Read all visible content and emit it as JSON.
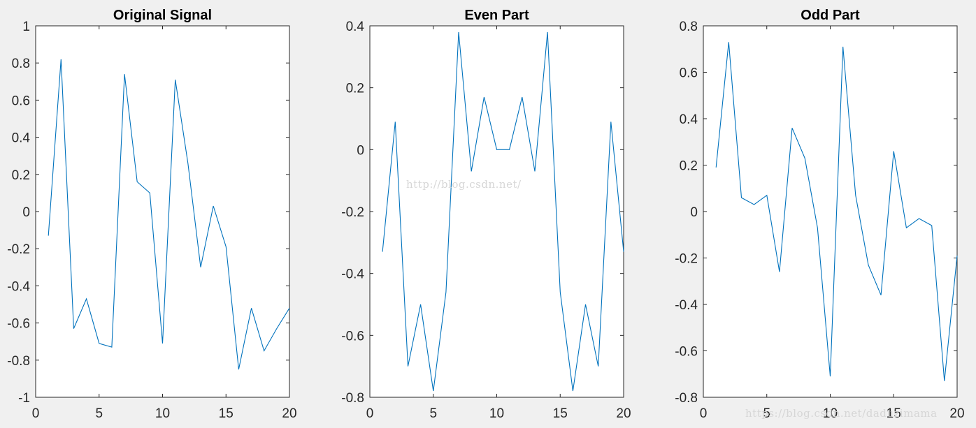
{
  "chart_data": [
    {
      "type": "line",
      "title": "Original Signal",
      "xlabel": "",
      "ylabel": "",
      "xlim": [
        0,
        20
      ],
      "ylim": [
        -1,
        1
      ],
      "xticks": [
        "0",
        "5",
        "10",
        "15",
        "20"
      ],
      "yticks": [
        "-1",
        "-0.8",
        "-0.6",
        "-0.4",
        "-0.2",
        "0",
        "0.2",
        "0.4",
        "0.6",
        "0.8",
        "1"
      ],
      "grid": false,
      "line_color": "#0072bd",
      "x": [
        1,
        2,
        3,
        4,
        5,
        6,
        7,
        8,
        9,
        10,
        11,
        12,
        13,
        14,
        15,
        16,
        17,
        18,
        19,
        20
      ],
      "y": [
        -0.13,
        0.82,
        -0.63,
        -0.47,
        -0.71,
        -0.73,
        0.74,
        0.16,
        0.1,
        -0.71,
        0.71,
        0.26,
        -0.3,
        0.03,
        -0.19,
        -0.85,
        -0.52,
        -0.75,
        -0.63,
        -0.52
      ]
    },
    {
      "type": "line",
      "title": "Even Part",
      "xlabel": "",
      "ylabel": "",
      "xlim": [
        0,
        20
      ],
      "ylim": [
        -0.8,
        0.4
      ],
      "xticks": [
        "0",
        "5",
        "10",
        "15",
        "20"
      ],
      "yticks": [
        "-0.8",
        "-0.6",
        "-0.4",
        "-0.2",
        "0",
        "0.2",
        "0.4"
      ],
      "grid": false,
      "line_color": "#0072bd",
      "x": [
        1,
        2,
        3,
        4,
        5,
        6,
        7,
        8,
        9,
        10,
        11,
        12,
        13,
        14,
        15,
        16,
        17,
        18,
        19,
        20
      ],
      "y": [
        -0.33,
        0.09,
        -0.7,
        -0.5,
        -0.78,
        -0.46,
        0.38,
        -0.07,
        0.17,
        0.0,
        0.0,
        0.17,
        -0.07,
        0.38,
        -0.46,
        -0.78,
        -0.5,
        -0.7,
        0.09,
        -0.33
      ]
    },
    {
      "type": "line",
      "title": "Odd Part",
      "xlabel": "",
      "ylabel": "",
      "xlim": [
        0,
        20
      ],
      "ylim": [
        -0.8,
        0.8
      ],
      "xticks": [
        "0",
        "5",
        "10",
        "15",
        "20"
      ],
      "yticks": [
        "-0.8",
        "-0.6",
        "-0.4",
        "-0.2",
        "0",
        "0.2",
        "0.4",
        "0.6",
        "0.8"
      ],
      "grid": false,
      "line_color": "#0072bd",
      "x": [
        1,
        2,
        3,
        4,
        5,
        6,
        7,
        8,
        9,
        10,
        11,
        12,
        13,
        14,
        15,
        16,
        17,
        18,
        19,
        20
      ],
      "y": [
        0.19,
        0.73,
        0.06,
        0.03,
        0.07,
        -0.26,
        0.36,
        0.23,
        -0.07,
        -0.71,
        0.71,
        0.07,
        -0.23,
        -0.36,
        0.26,
        -0.07,
        -0.03,
        -0.06,
        -0.73,
        -0.19
      ]
    }
  ],
  "watermarks": [
    "http://blog.csdn.net/",
    "https://blog.csdn.net/daduzimama"
  ],
  "colors": {
    "figure_background": "#f0f0f0",
    "axes_background": "#ffffff",
    "axis_color": "#262626",
    "line": "#0072bd"
  }
}
